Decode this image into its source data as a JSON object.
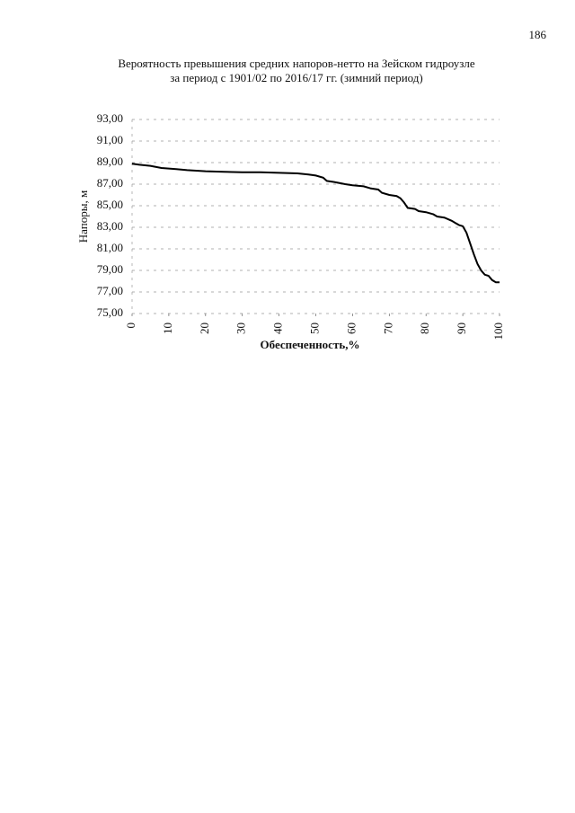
{
  "page_number": "186",
  "chart_data": {
    "type": "line",
    "title": "Вероятность превышения средних напоров-нетто на Зейском гидроузле",
    "subtitle": "за период с 1901/02 по 2016/17 гг. (зимний период)",
    "x_label": "Обеспеченность,%",
    "y_label": "Напоры, м",
    "x": [
      0,
      2,
      5,
      8,
      12,
      15,
      20,
      25,
      30,
      35,
      40,
      45,
      48,
      50,
      52,
      53,
      55,
      58,
      60,
      63,
      65,
      67,
      68,
      70,
      72,
      73,
      74,
      75,
      77,
      78,
      80,
      82,
      83,
      85,
      87,
      88,
      89,
      90,
      91,
      92,
      93,
      94,
      95,
      96,
      97,
      98,
      99,
      100
    ],
    "series": [
      {
        "name": "Напоры",
        "color": "#000000",
        "values": [
          88.9,
          88.8,
          88.7,
          88.5,
          88.4,
          88.3,
          88.2,
          88.15,
          88.1,
          88.1,
          88.05,
          88.0,
          87.9,
          87.8,
          87.6,
          87.3,
          87.2,
          87.0,
          86.9,
          86.8,
          86.6,
          86.5,
          86.2,
          86.0,
          85.9,
          85.7,
          85.3,
          84.8,
          84.7,
          84.5,
          84.4,
          84.2,
          84.0,
          83.9,
          83.6,
          83.4,
          83.2,
          83.1,
          82.5,
          81.5,
          80.5,
          79.6,
          79.0,
          78.6,
          78.5,
          78.1,
          77.9,
          77.9
        ]
      }
    ],
    "xlim": [
      0,
      100
    ],
    "xticks": [
      0,
      10,
      20,
      30,
      40,
      50,
      60,
      70,
      80,
      90,
      100
    ],
    "ylim": [
      75,
      93
    ],
    "yticks": [
      {
        "value": 75,
        "label": "75,00"
      },
      {
        "value": 77,
        "label": "77,00"
      },
      {
        "value": 79,
        "label": "79,00"
      },
      {
        "value": 81,
        "label": "81,00"
      },
      {
        "value": 83,
        "label": "83,00"
      },
      {
        "value": 85,
        "label": "85,00"
      },
      {
        "value": 87,
        "label": "87,00"
      },
      {
        "value": 89,
        "label": "89,00"
      },
      {
        "value": 91,
        "label": "91,00"
      },
      {
        "value": 93,
        "label": "93,00"
      }
    ],
    "grid": true
  }
}
